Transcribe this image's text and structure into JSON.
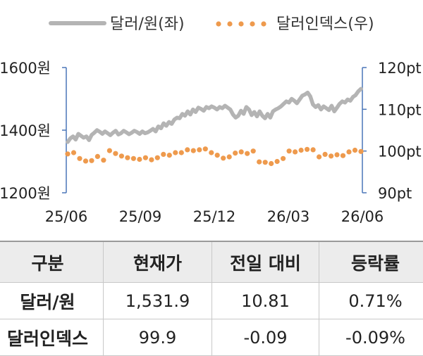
{
  "chart_data": {
    "type": "line",
    "title": "",
    "x_tick_labels": [
      "25/06",
      "25/09",
      "25/12",
      "26/03",
      "26/06"
    ],
    "legend_position": "top",
    "grid": false,
    "left_axis": {
      "range": [
        1200,
        1600
      ],
      "ticks": [
        1200,
        1400,
        1600
      ],
      "tick_labels": [
        "1200원",
        "1400원",
        "1600원"
      ]
    },
    "right_axis": {
      "range": [
        90,
        120
      ],
      "ticks": [
        90,
        100,
        110,
        120
      ],
      "tick_labels": [
        "90pt",
        "100pt",
        "110pt",
        "120pt"
      ]
    },
    "series": [
      {
        "name": "달러/원(좌)",
        "axis": "left",
        "style": "solid",
        "color": "#b4b4b4",
        "values": [
          1362,
          1374,
          1380,
          1370,
          1388,
          1382,
          1376,
          1380,
          1368,
          1385,
          1392,
          1400,
          1395,
          1388,
          1396,
          1390,
          1384,
          1392,
          1398,
          1386,
          1390,
          1398,
          1393,
          1387,
          1392,
          1398,
          1394,
          1388,
          1396,
          1390,
          1393,
          1398,
          1404,
          1396,
          1412,
          1406,
          1422,
          1414,
          1426,
          1420,
          1434,
          1440,
          1438,
          1452,
          1446,
          1460,
          1450,
          1466,
          1458,
          1472,
          1468,
          1462,
          1474,
          1470,
          1476,
          1472,
          1466,
          1474,
          1470,
          1478,
          1472,
          1466,
          1450,
          1440,
          1446,
          1462,
          1452,
          1474,
          1466,
          1448,
          1458,
          1444,
          1460,
          1446,
          1438,
          1452,
          1440,
          1460,
          1466,
          1470,
          1476,
          1484,
          1492,
          1488,
          1500,
          1494,
          1486,
          1498,
          1510,
          1514,
          1520,
          1508,
          1482,
          1474,
          1480,
          1466,
          1476,
          1470,
          1464,
          1478,
          1460,
          1472,
          1484,
          1492,
          1488,
          1498,
          1494,
          1506,
          1512,
          1524,
          1531.9
        ]
      },
      {
        "name": "달러인덱스(우)",
        "axis": "right",
        "style": "dotted",
        "color": "#ee9a4d",
        "values": [
          99.3,
          99.6,
          98.2,
          97.6,
          97.7,
          98.7,
          97.8,
          100.1,
          99.4,
          98.8,
          98.4,
          98.2,
          98.0,
          98.4,
          97.9,
          98.4,
          99.2,
          99.0,
          99.6,
          99.6,
          100.3,
          100.1,
          100.3,
          100.5,
          99.6,
          99.0,
          98.3,
          98.6,
          99.5,
          99.8,
          99.4,
          100.0,
          97.4,
          97.3,
          97.0,
          97.5,
          98.2,
          100.0,
          99.8,
          100.2,
          100.4,
          100.3,
          98.6,
          99.2,
          98.8,
          99.1,
          98.9,
          99.8,
          100.2,
          99.9
        ]
      }
    ]
  },
  "table": {
    "headers": [
      "구분",
      "현재가",
      "전일 대비",
      "등락률"
    ],
    "rows": [
      [
        "달러/원",
        "1,531.9",
        "10.81",
        "0.71%"
      ],
      [
        "달러인덱스",
        "99.9",
        "-0.09",
        "-0.09%"
      ]
    ]
  }
}
